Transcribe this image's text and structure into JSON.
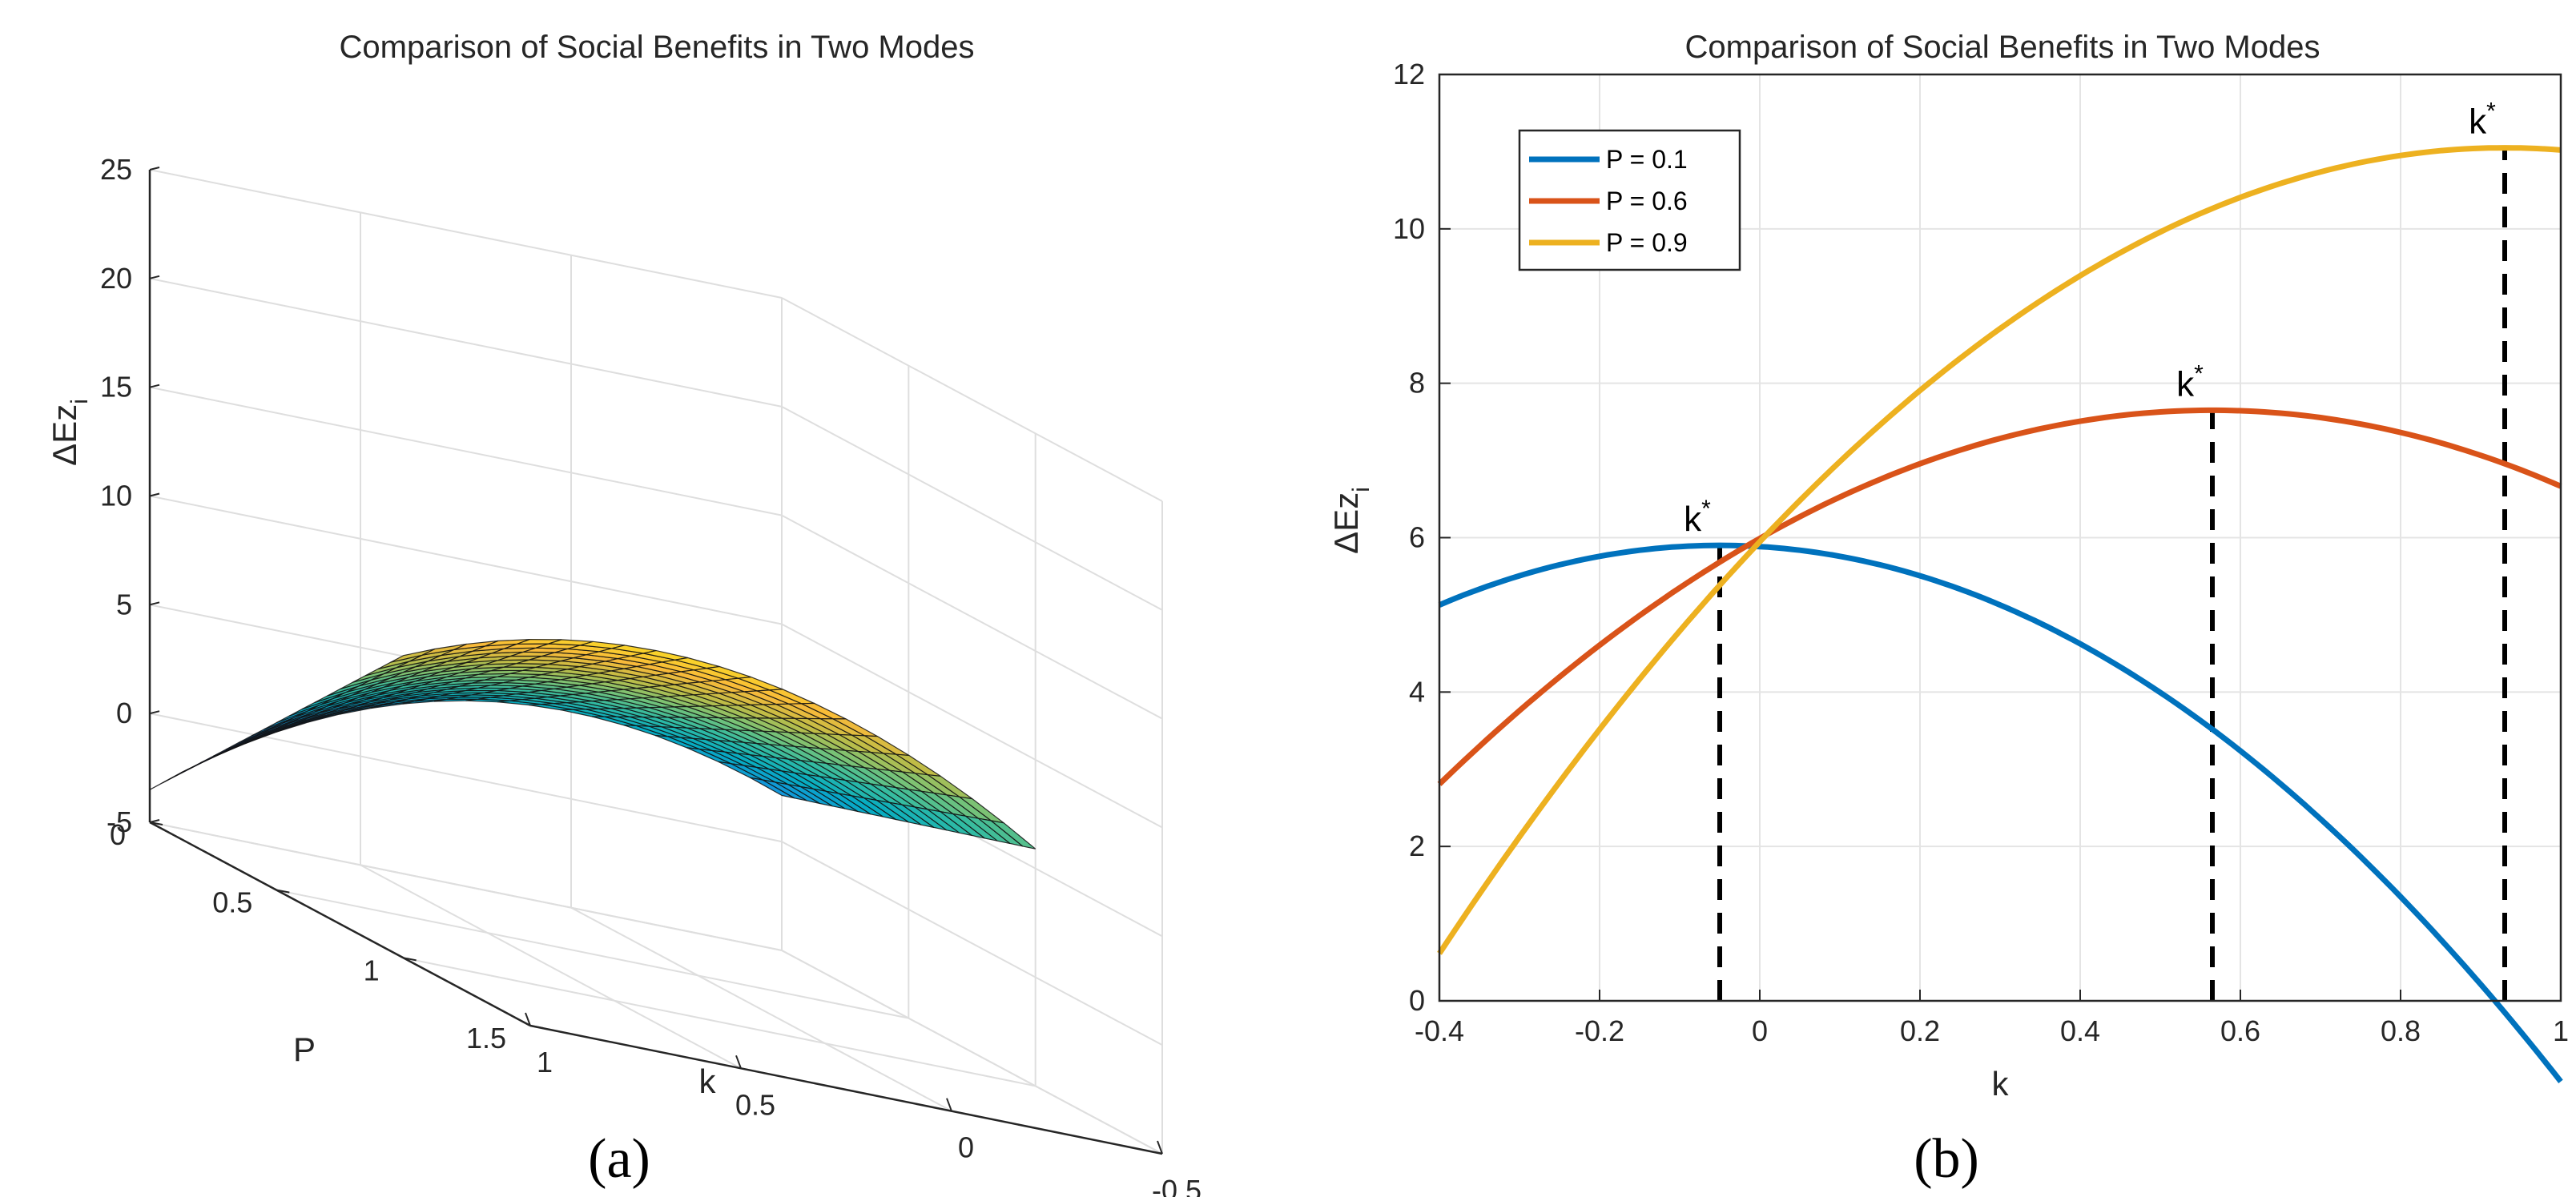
{
  "chart_data": [
    {
      "type": "surface",
      "title": "Comparison of Social Benefits in Two Modes",
      "xlabel": "k",
      "ylabel": "P",
      "zlabel": "ΔEz",
      "zlabel_sub": "i",
      "x_ticks": [
        "-0.5",
        "0",
        "0.5",
        "1"
      ],
      "y_ticks": [
        "0",
        "0.5",
        "1",
        "1.5"
      ],
      "z_ticks": [
        "-5",
        "0",
        "5",
        "10",
        "15",
        "20",
        "25"
      ],
      "xlim": [
        -0.5,
        1
      ],
      "ylim": [
        0,
        1.5
      ],
      "zlim": [
        -5,
        25
      ],
      "panel_label": "(a)"
    },
    {
      "type": "line",
      "title": "Comparison of Social Benefits in Two Modes",
      "xlabel": "k",
      "ylabel": "ΔEz",
      "ylabel_sub": "i",
      "xlim": [
        -0.4,
        1
      ],
      "ylim": [
        0,
        12
      ],
      "x_ticks": [
        "-0.4",
        "-0.2",
        "0",
        "0.2",
        "0.4",
        "0.6",
        "0.8",
        "1"
      ],
      "y_ticks": [
        "0",
        "2",
        "4",
        "6",
        "8",
        "10",
        "12"
      ],
      "series": [
        {
          "name": "P = 0.1",
          "color": "#0072BD",
          "k_opt": -0.05,
          "max": 5.9,
          "curvature": 6.3
        },
        {
          "name": "P = 0.6",
          "color": "#D95319",
          "k_opt": 0.565,
          "max": 7.65,
          "curvature": 5.2
        },
        {
          "name": "P = 0.9",
          "color": "#EDB120",
          "k_opt": 0.93,
          "max": 11.05,
          "curvature": 5.9
        }
      ],
      "annotations": [
        {
          "text": "k",
          "sup": "*",
          "x": -0.05
        },
        {
          "text": "k",
          "sup": "*",
          "x": 0.565
        },
        {
          "text": "k",
          "sup": "*",
          "x": 0.93
        }
      ],
      "legend": "top-left",
      "grid": true,
      "panel_label": "(b)"
    }
  ]
}
